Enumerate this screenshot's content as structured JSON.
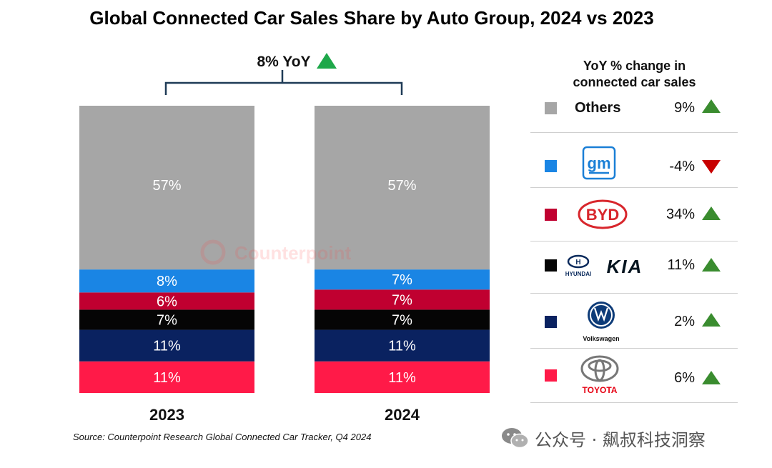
{
  "title": "Global Connected Car Sales Share by Auto Group, 2024 vs 2023",
  "source": "Source: Counterpoint Research Global Connected Car Tracker, Q4 2024",
  "watermark": "公众号 · 飙叔科技洞察",
  "overlay_watermark": "Counterpoint",
  "total_yoy": {
    "label": "8% YoY",
    "direction": "up"
  },
  "legend": {
    "title_line1": "YoY % change in",
    "title_line2": "connected car sales",
    "rows": [
      {
        "label": "Others",
        "icon": "others-label",
        "yoy": "9%",
        "direction": "up",
        "color": "#a6a6a6"
      },
      {
        "label": "gm",
        "icon": "gm-logo",
        "yoy": "-4%",
        "direction": "down",
        "color": "#1a85e4"
      },
      {
        "label": "BYD",
        "icon": "byd-logo",
        "yoy": "34%",
        "direction": "up",
        "color": "#c00030"
      },
      {
        "label": "HYUNDAI",
        "label2": "KIA",
        "icon": "hyundai-kia-logo",
        "yoy": "11%",
        "direction": "up",
        "color": "#050505"
      },
      {
        "label": "Volkswagen",
        "icon": "volkswagen-logo",
        "yoy": "2%",
        "direction": "up",
        "color": "#0a2260"
      },
      {
        "label": "TOYOTA",
        "icon": "toyota-logo",
        "yoy": "6%",
        "direction": "up",
        "color": "#ff1a48"
      }
    ]
  },
  "colors": {
    "up_arrow": "#3a8c2f",
    "down_arrow": "#c80000",
    "total_up_arrow": "#1ea84a"
  },
  "chart_data": {
    "type": "bar",
    "stacked": true,
    "categories": [
      "2023",
      "2024"
    ],
    "series": [
      {
        "name": "Toyota",
        "color": "#ff1a48",
        "values": [
          11,
          11
        ],
        "labels": [
          "11%",
          "11%"
        ]
      },
      {
        "name": "Volkswagen",
        "color": "#0a2260",
        "values": [
          11,
          11
        ],
        "labels": [
          "11%",
          "11%"
        ]
      },
      {
        "name": "Hyundai Kia",
        "color": "#050505",
        "values": [
          7,
          7
        ],
        "labels": [
          "7%",
          "7%"
        ]
      },
      {
        "name": "BYD",
        "color": "#c00030",
        "values": [
          6,
          7
        ],
        "labels": [
          "6%",
          "7%"
        ]
      },
      {
        "name": "GM",
        "color": "#1a85e4",
        "values": [
          8,
          7
        ],
        "labels": [
          "8%",
          "7%"
        ]
      },
      {
        "name": "Others",
        "color": "#a6a6a6",
        "values": [
          57,
          57
        ],
        "labels": [
          "57%",
          "57%"
        ]
      }
    ],
    "ylim": [
      0,
      100
    ]
  }
}
